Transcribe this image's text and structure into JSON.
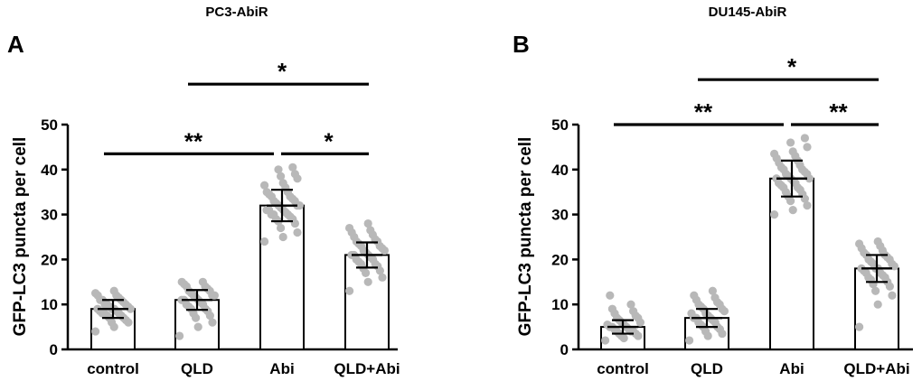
{
  "chart_data": [
    {
      "type": "bar",
      "panel": "A",
      "title": "PC3-AbiR",
      "ylabel": "GFP-LC3 puncta per cell",
      "xlabel": "",
      "ylim": [
        0,
        50
      ],
      "yticks": [
        "0",
        "10",
        "20",
        "30",
        "40",
        "50"
      ],
      "categories": [
        "control",
        "QLD",
        "Abi",
        "QLD+Abi"
      ],
      "values": [
        9,
        11,
        32,
        21
      ],
      "error": [
        2,
        2.2,
        3.5,
        2.8
      ],
      "points": [
        [
          4,
          5,
          6,
          6,
          6.5,
          7,
          7,
          7.5,
          7.5,
          8,
          8,
          8,
          8.5,
          8.5,
          9,
          9,
          9,
          9,
          9.5,
          9.5,
          10,
          10,
          10,
          10.5,
          11,
          11,
          11,
          11.5,
          12,
          12,
          12.5,
          13
        ],
        [
          3,
          5,
          6,
          7,
          7.5,
          8,
          8.5,
          9,
          9,
          9.5,
          10,
          10,
          10.5,
          11,
          11,
          11,
          11.5,
          12,
          12,
          12,
          12.5,
          13,
          13,
          13.5,
          14,
          14,
          14.5,
          15,
          15
        ],
        [
          24,
          25,
          26,
          27,
          28,
          28.5,
          29,
          29,
          29.5,
          30,
          30,
          30,
          30.5,
          31,
          31,
          31,
          31.5,
          32,
          32,
          32,
          32.5,
          33,
          33,
          33.5,
          34,
          34,
          34.5,
          35,
          35,
          36,
          36.5,
          37,
          38,
          38.5,
          39,
          40,
          40.5
        ],
        [
          13,
          15,
          16,
          17,
          17.5,
          18,
          18.5,
          19,
          19,
          19.5,
          20,
          20,
          20.5,
          21,
          21,
          21,
          21.5,
          22,
          22,
          22.5,
          23,
          23,
          23.5,
          24,
          24,
          24.5,
          25,
          25.5,
          26,
          26.5,
          27,
          28
        ]
      ],
      "significance": [
        {
          "from": 0,
          "to": 2,
          "label": "**",
          "level": 43.5
        },
        {
          "from": 2,
          "to": 3,
          "label": "*",
          "level": 43.5
        },
        {
          "from": 1,
          "to": 3,
          "label": "*",
          "level": 59
        }
      ]
    },
    {
      "type": "bar",
      "panel": "B",
      "title": "DU145-AbiR",
      "ylabel": "GFP-LC3 puncta per cell",
      "xlabel": "",
      "ylim": [
        0,
        50
      ],
      "yticks": [
        "0",
        "10",
        "20",
        "30",
        "40",
        "50"
      ],
      "categories": [
        "control",
        "QLD",
        "Abi",
        "QLD+Abi"
      ],
      "values": [
        5,
        7,
        38,
        18
      ],
      "error": [
        1.5,
        2,
        4,
        3
      ],
      "points": [
        [
          2,
          2.5,
          3,
          3,
          3.5,
          3.5,
          4,
          4,
          4,
          4.5,
          4.5,
          5,
          5,
          5,
          5.5,
          5.5,
          6,
          6,
          6.5,
          7,
          7,
          7.5,
          8,
          8.5,
          9,
          10,
          12
        ],
        [
          2,
          3,
          3.5,
          4,
          4.5,
          5,
          5,
          5.5,
          6,
          6,
          6.5,
          7,
          7,
          7,
          7.5,
          8,
          8,
          8.5,
          9,
          9,
          9.5,
          10,
          10,
          10.5,
          11,
          11.5,
          12,
          13
        ],
        [
          30,
          31,
          32,
          33,
          33.5,
          34,
          34.5,
          35,
          35.5,
          36,
          36,
          36.5,
          37,
          37,
          37.5,
          38,
          38,
          38,
          38.5,
          39,
          39,
          39.5,
          40,
          40,
          40.5,
          41,
          41.5,
          42,
          42.5,
          43,
          43.5,
          44,
          45,
          46,
          47
        ],
        [
          5,
          10,
          12,
          13,
          14,
          14.5,
          15,
          15.5,
          16,
          16,
          16.5,
          17,
          17,
          17.5,
          18,
          18,
          18,
          18.5,
          19,
          19,
          19.5,
          20,
          20,
          20.5,
          21,
          21,
          21.5,
          22,
          22.5,
          23,
          23.5,
          24
        ]
      ],
      "significance": [
        {
          "from": 0,
          "to": 2,
          "label": "**",
          "level": 50
        },
        {
          "from": 2,
          "to": 3,
          "label": "**",
          "level": 50
        },
        {
          "from": 1,
          "to": 3,
          "label": "*",
          "level": 60
        }
      ]
    }
  ]
}
